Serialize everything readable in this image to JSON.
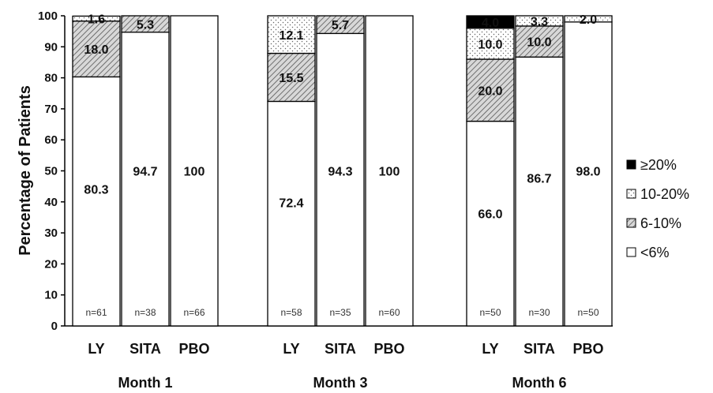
{
  "chart_data": {
    "type": "bar",
    "stacked": true,
    "ylabel": "Percentage of Patients",
    "ylim": [
      0,
      100
    ],
    "yticks": [
      0,
      10,
      20,
      30,
      40,
      50,
      60,
      70,
      80,
      90,
      100
    ],
    "grid": false,
    "legend_position": "right",
    "series": [
      {
        "name": "<6%",
        "pattern": "white"
      },
      {
        "name": "6-10%",
        "pattern": "hatch"
      },
      {
        "name": "10-20%",
        "pattern": "dots"
      },
      {
        "name": "≥20%",
        "pattern": "black"
      }
    ],
    "legend_order": [
      "≥20%",
      "10-20%",
      "6-10%",
      "<6%"
    ],
    "groups": [
      {
        "name": "Month 1",
        "bars": [
          {
            "category": "LY",
            "n": "n=61",
            "values": [
              80.3,
              18.0,
              1.6,
              0
            ],
            "labels": [
              "80.3",
              "18.0",
              "1.6",
              ""
            ]
          },
          {
            "category": "SITA",
            "n": "n=38",
            "values": [
              94.7,
              5.3,
              0,
              0
            ],
            "labels": [
              "94.7",
              "5.3",
              "",
              ""
            ]
          },
          {
            "category": "PBO",
            "n": "n=66",
            "values": [
              100,
              0,
              0,
              0
            ],
            "labels": [
              "100",
              "",
              "",
              ""
            ]
          }
        ]
      },
      {
        "name": "Month 3",
        "bars": [
          {
            "category": "LY",
            "n": "n=58",
            "values": [
              72.4,
              15.5,
              12.1,
              0
            ],
            "labels": [
              "72.4",
              "15.5",
              "12.1",
              ""
            ]
          },
          {
            "category": "SITA",
            "n": "n=35",
            "values": [
              94.3,
              5.7,
              0,
              0
            ],
            "labels": [
              "94.3",
              "5.7",
              "",
              ""
            ]
          },
          {
            "category": "PBO",
            "n": "n=60",
            "values": [
              100,
              0,
              0,
              0
            ],
            "labels": [
              "100",
              "",
              "",
              ""
            ]
          }
        ]
      },
      {
        "name": "Month 6",
        "bars": [
          {
            "category": "LY",
            "n": "n=50",
            "values": [
              66.0,
              20.0,
              10.0,
              4.0
            ],
            "labels": [
              "66.0",
              "20.0",
              "10.0",
              "4.0"
            ]
          },
          {
            "category": "SITA",
            "n": "n=30",
            "values": [
              86.7,
              10.0,
              3.3,
              0
            ],
            "labels": [
              "86.7",
              "10.0",
              "3.3",
              ""
            ]
          },
          {
            "category": "PBO",
            "n": "n=50",
            "values": [
              98.0,
              0,
              2.0,
              0
            ],
            "labels": [
              "98.0",
              "",
              "2.0",
              ""
            ]
          }
        ]
      }
    ]
  }
}
